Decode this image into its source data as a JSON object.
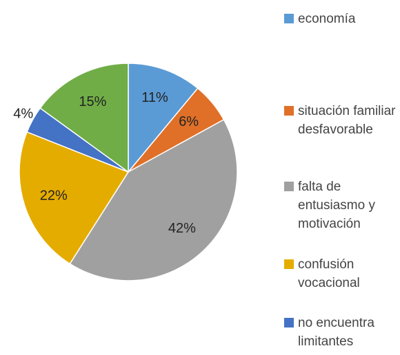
{
  "chart_data": {
    "type": "pie",
    "categories": [
      "economía",
      "situación familiar desfavorable",
      "falta de entusiasmo y motivación",
      "confusión vocacional",
      "no encuentra limitantes",
      null
    ],
    "values": [
      11,
      6,
      42,
      22,
      4,
      15
    ],
    "value_labels": [
      "11%",
      "6%",
      "42%",
      "22%",
      "4%",
      "15%"
    ],
    "colors": [
      "#5b9bd5",
      "#e07028",
      "#a0a0a0",
      "#e5ac00",
      "#4472c4",
      "#70ad47"
    ],
    "legend": "right"
  }
}
